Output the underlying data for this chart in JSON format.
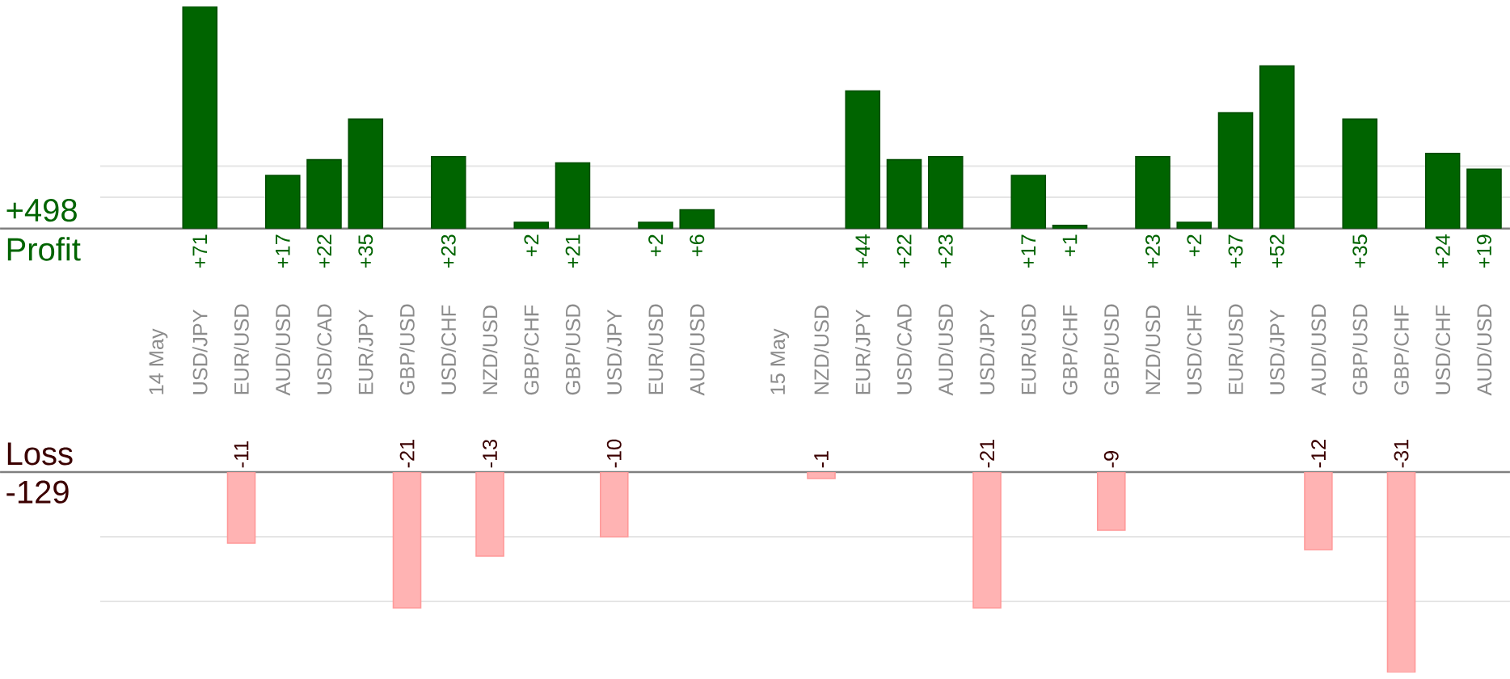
{
  "chart_data": [
    {
      "type": "bar",
      "categories": [
        "14 May",
        "USD/JPY",
        "EUR/USD",
        "AUD/USD",
        "USD/CAD",
        "EUR/JPY",
        "GBP/USD",
        "USD/CHF",
        "NZD/USD",
        "GBP/CHF",
        "GBP/USD",
        "USD/JPY",
        "EUR/USD",
        "AUD/USD",
        null,
        "15 May",
        "NZD/USD",
        "EUR/JPY",
        "USD/CAD",
        "AUD/USD",
        "USD/JPY",
        "EUR/USD",
        "GBP/CHF",
        "GBP/USD",
        "NZD/USD",
        "USD/CHF",
        "EUR/USD",
        "USD/JPY",
        "AUD/USD",
        "GBP/USD",
        "GBP/CHF",
        "USD/CHF",
        "AUD/USD"
      ],
      "values": [
        null,
        71,
        null,
        17,
        22,
        35,
        null,
        23,
        null,
        2,
        21,
        null,
        2,
        6,
        null,
        null,
        null,
        44,
        22,
        23,
        null,
        17,
        1,
        null,
        23,
        2,
        37,
        52,
        null,
        35,
        null,
        24,
        19
      ],
      "value_labels": [
        null,
        "+71",
        null,
        "+17",
        "+22",
        "+35",
        null,
        "+23",
        null,
        "+2",
        "+21",
        null,
        "+2",
        "+6",
        null,
        null,
        null,
        "+44",
        "+22",
        "+23",
        null,
        "+17",
        "+1",
        null,
        "+23",
        "+2",
        "+37",
        "+52",
        null,
        "+35",
        null,
        "+24",
        "+19"
      ],
      "color": "#006400",
      "ref_lines": [
        {
          "axis": "y",
          "value": 10,
          "color": "#e5e5e5"
        },
        {
          "axis": "y",
          "value": 20,
          "color": "#e5e5e5"
        }
      ],
      "tick_labels": "x",
      "annotations": [
        "+498",
        "Profit"
      ]
    },
    {
      "type": "bar",
      "categories": [
        null,
        null,
        null,
        null,
        null,
        null,
        null,
        null,
        null,
        null,
        null,
        null,
        null,
        null,
        null,
        null,
        null,
        null,
        null,
        null,
        null,
        null,
        null,
        null,
        null,
        null,
        null,
        null,
        null,
        null,
        null,
        null,
        null
      ],
      "values": [
        null,
        null,
        -11,
        null,
        null,
        null,
        -21,
        null,
        -13,
        null,
        null,
        -10,
        null,
        null,
        null,
        null,
        -1,
        null,
        null,
        null,
        -21,
        null,
        null,
        -9,
        null,
        null,
        null,
        null,
        -12,
        null,
        -31,
        null,
        null
      ],
      "value_labels": [
        null,
        null,
        "-11",
        null,
        null,
        null,
        "-21",
        null,
        "-13",
        null,
        null,
        "-10",
        null,
        null,
        null,
        null,
        "-1",
        null,
        null,
        null,
        "-21",
        null,
        null,
        "-9",
        null,
        null,
        null,
        null,
        "-12",
        null,
        "-31",
        null,
        null
      ],
      "color": "#ffb3b3",
      "ref_lines": [
        {
          "axis": "y",
          "value": -10,
          "color": "#e5e5e5"
        },
        {
          "axis": "y",
          "value": -20,
          "color": "#e5e5e5"
        }
      ],
      "tick_labels": false,
      "annotations": [
        "Loss",
        "-129"
      ]
    }
  ]
}
